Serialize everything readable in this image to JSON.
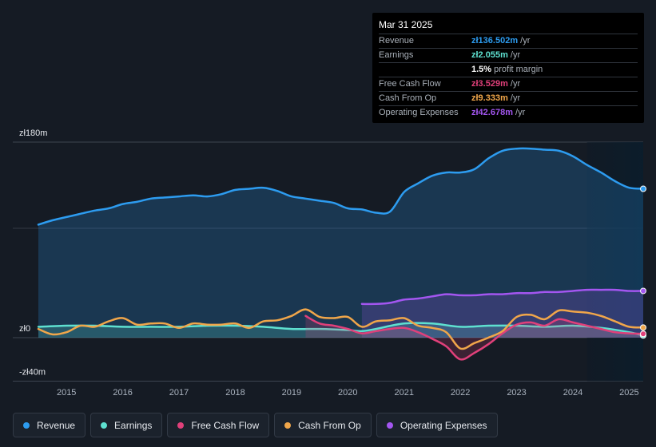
{
  "tooltip": {
    "date": "Mar 31 2025",
    "rows": [
      {
        "label": "Revenue",
        "value": "zł136.502m",
        "unit": " /yr",
        "color": "#2d9cf0"
      },
      {
        "label": "Earnings",
        "value": "zł2.055m",
        "unit": " /yr",
        "color": "#5ee0d0"
      },
      {
        "label": "",
        "value": "1.5%",
        "unit": " profit margin",
        "color": "#ffffff"
      },
      {
        "label": "Free Cash Flow",
        "value": "zł3.529m",
        "unit": " /yr",
        "color": "#e0407a"
      },
      {
        "label": "Cash From Op",
        "value": "zł9.333m",
        "unit": " /yr",
        "color": "#f0a64a"
      },
      {
        "label": "Operating Expenses",
        "value": "zł42.678m",
        "unit": " /yr",
        "color": "#a356f0"
      }
    ]
  },
  "legend": [
    {
      "label": "Revenue",
      "color": "#2d9cf0"
    },
    {
      "label": "Earnings",
      "color": "#5ee0d0"
    },
    {
      "label": "Free Cash Flow",
      "color": "#e0407a"
    },
    {
      "label": "Cash From Op",
      "color": "#f0a64a"
    },
    {
      "label": "Operating Expenses",
      "color": "#a356f0"
    }
  ],
  "chart_data": {
    "type": "area",
    "title": "",
    "xlabel": "",
    "ylabel": "",
    "currency": "zł",
    "ylim": [
      -40,
      180
    ],
    "xlim": [
      2014.5,
      2025.25
    ],
    "y_tick_labels": [
      {
        "value": 180,
        "label": "zł180m"
      },
      {
        "value": 0,
        "label": "zł0"
      },
      {
        "value": -40,
        "label": "-zł40m"
      }
    ],
    "x_ticks": [
      2015,
      2016,
      2017,
      2018,
      2019,
      2020,
      2021,
      2022,
      2023,
      2024,
      2025
    ],
    "x_tick_labels": [
      "2015",
      "2016",
      "2017",
      "2018",
      "2019",
      "2020",
      "2021",
      "2022",
      "2023",
      "2024",
      "2025"
    ],
    "forecast_shade_start": 2024.25,
    "series": [
      {
        "name": "Revenue",
        "color": "#2d9cf0",
        "fill": true,
        "points": [
          [
            2014.5,
            104
          ],
          [
            2014.75,
            108
          ],
          [
            2015.0,
            111
          ],
          [
            2015.25,
            114
          ],
          [
            2015.5,
            117
          ],
          [
            2015.75,
            119
          ],
          [
            2016.0,
            123
          ],
          [
            2016.25,
            125
          ],
          [
            2016.5,
            128
          ],
          [
            2016.75,
            129
          ],
          [
            2017.0,
            130
          ],
          [
            2017.25,
            131
          ],
          [
            2017.5,
            130
          ],
          [
            2017.75,
            132
          ],
          [
            2018.0,
            136
          ],
          [
            2018.25,
            137
          ],
          [
            2018.5,
            138
          ],
          [
            2018.75,
            135
          ],
          [
            2019.0,
            130
          ],
          [
            2019.25,
            128
          ],
          [
            2019.5,
            126
          ],
          [
            2019.75,
            124
          ],
          [
            2020.0,
            119
          ],
          [
            2020.25,
            118
          ],
          [
            2020.5,
            115
          ],
          [
            2020.75,
            116
          ],
          [
            2021.0,
            134
          ],
          [
            2021.25,
            142
          ],
          [
            2021.5,
            149
          ],
          [
            2021.75,
            152
          ],
          [
            2022.0,
            152
          ],
          [
            2022.25,
            155
          ],
          [
            2022.5,
            165
          ],
          [
            2022.75,
            172
          ],
          [
            2023.0,
            174
          ],
          [
            2023.25,
            174
          ],
          [
            2023.5,
            173
          ],
          [
            2023.75,
            172
          ],
          [
            2024.0,
            167
          ],
          [
            2024.25,
            159
          ],
          [
            2024.5,
            152
          ],
          [
            2024.75,
            144
          ],
          [
            2025.0,
            138
          ],
          [
            2025.25,
            137
          ]
        ]
      },
      {
        "name": "Operating Expenses",
        "color": "#a356f0",
        "fill": true,
        "points": [
          [
            2020.25,
            31
          ],
          [
            2020.5,
            31
          ],
          [
            2020.75,
            32
          ],
          [
            2021.0,
            35
          ],
          [
            2021.25,
            36
          ],
          [
            2021.5,
            38
          ],
          [
            2021.75,
            40
          ],
          [
            2022.0,
            39
          ],
          [
            2022.25,
            39
          ],
          [
            2022.5,
            40
          ],
          [
            2022.75,
            40
          ],
          [
            2023.0,
            41
          ],
          [
            2023.25,
            41
          ],
          [
            2023.5,
            42
          ],
          [
            2023.75,
            42
          ],
          [
            2024.0,
            43
          ],
          [
            2024.25,
            44
          ],
          [
            2024.5,
            44
          ],
          [
            2024.75,
            44
          ],
          [
            2025.0,
            43
          ],
          [
            2025.25,
            43
          ]
        ]
      },
      {
        "name": "Earnings",
        "color": "#5ee0d0",
        "fill": true,
        "points": [
          [
            2014.5,
            10
          ],
          [
            2015.0,
            11
          ],
          [
            2015.5,
            11
          ],
          [
            2016.0,
            10
          ],
          [
            2016.5,
            10
          ],
          [
            2017.0,
            10
          ],
          [
            2017.5,
            11
          ],
          [
            2018.0,
            11
          ],
          [
            2018.5,
            10
          ],
          [
            2019.0,
            8
          ],
          [
            2019.5,
            8
          ],
          [
            2020.0,
            7
          ],
          [
            2020.25,
            6
          ],
          [
            2020.5,
            8
          ],
          [
            2021.0,
            13
          ],
          [
            2021.5,
            13
          ],
          [
            2022.0,
            10
          ],
          [
            2022.5,
            11
          ],
          [
            2023.0,
            11
          ],
          [
            2023.5,
            10
          ],
          [
            2024.0,
            11
          ],
          [
            2024.5,
            9
          ],
          [
            2025.0,
            5
          ],
          [
            2025.25,
            2
          ]
        ]
      },
      {
        "name": "Free Cash Flow",
        "color": "#e0407a",
        "fill": true,
        "points": [
          [
            2019.25,
            20
          ],
          [
            2019.5,
            13
          ],
          [
            2019.75,
            11
          ],
          [
            2020.0,
            8
          ],
          [
            2020.25,
            4
          ],
          [
            2020.5,
            6
          ],
          [
            2020.75,
            8
          ],
          [
            2021.0,
            9
          ],
          [
            2021.25,
            5
          ],
          [
            2021.5,
            -1
          ],
          [
            2021.75,
            -8
          ],
          [
            2022.0,
            -20
          ],
          [
            2022.25,
            -14
          ],
          [
            2022.5,
            -6
          ],
          [
            2022.75,
            4
          ],
          [
            2023.0,
            12
          ],
          [
            2023.25,
            14
          ],
          [
            2023.5,
            11
          ],
          [
            2023.75,
            17
          ],
          [
            2024.0,
            14
          ],
          [
            2024.25,
            11
          ],
          [
            2024.5,
            8
          ],
          [
            2024.75,
            5
          ],
          [
            2025.0,
            4
          ],
          [
            2025.25,
            3.5
          ]
        ]
      },
      {
        "name": "Cash From Op",
        "color": "#f0a64a",
        "fill": false,
        "points": [
          [
            2014.5,
            8
          ],
          [
            2014.75,
            3
          ],
          [
            2015.0,
            5
          ],
          [
            2015.25,
            11
          ],
          [
            2015.5,
            10
          ],
          [
            2015.75,
            15
          ],
          [
            2016.0,
            18
          ],
          [
            2016.25,
            12
          ],
          [
            2016.5,
            13
          ],
          [
            2016.75,
            13
          ],
          [
            2017.0,
            9
          ],
          [
            2017.25,
            13
          ],
          [
            2017.5,
            12
          ],
          [
            2017.75,
            12
          ],
          [
            2018.0,
            13
          ],
          [
            2018.25,
            9
          ],
          [
            2018.5,
            15
          ],
          [
            2018.75,
            16
          ],
          [
            2019.0,
            20
          ],
          [
            2019.25,
            26
          ],
          [
            2019.5,
            19
          ],
          [
            2019.75,
            18
          ],
          [
            2020.0,
            19
          ],
          [
            2020.25,
            10
          ],
          [
            2020.5,
            15
          ],
          [
            2020.75,
            16
          ],
          [
            2021.0,
            18
          ],
          [
            2021.25,
            11
          ],
          [
            2021.5,
            9
          ],
          [
            2021.75,
            5
          ],
          [
            2022.0,
            -10
          ],
          [
            2022.25,
            -5
          ],
          [
            2022.5,
            0
          ],
          [
            2022.75,
            6
          ],
          [
            2023.0,
            19
          ],
          [
            2023.25,
            21
          ],
          [
            2023.5,
            17
          ],
          [
            2023.75,
            25
          ],
          [
            2024.0,
            24
          ],
          [
            2024.25,
            23
          ],
          [
            2024.5,
            20
          ],
          [
            2024.75,
            15
          ],
          [
            2025.0,
            10
          ],
          [
            2025.25,
            9.3
          ]
        ]
      }
    ]
  }
}
